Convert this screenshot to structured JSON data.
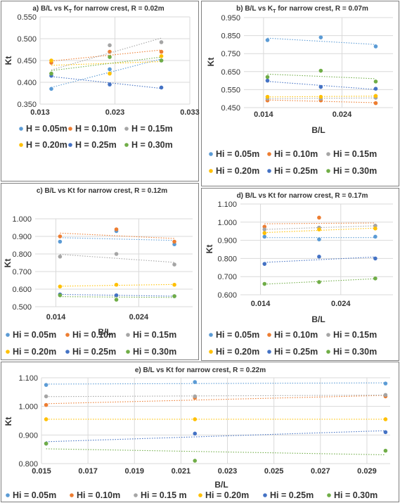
{
  "colors": {
    "s1": "#5b9bd5",
    "s2": "#ed7d31",
    "s3": "#a5a5a5",
    "s4": "#ffc000",
    "s5": "#4472c4",
    "s6": "#70ad47"
  },
  "chart_data": [
    {
      "type": "scatter",
      "title": "a) B/L vs K",
      "title_sub": "T",
      "title_rest": " for narrow crest, R = 0.02m",
      "xlabel": "",
      "ylabel": "Kt",
      "xlim": [
        0.013,
        0.033
      ],
      "ylim": [
        0.35,
        0.55
      ],
      "x_ticks": [
        "0.013",
        "0.023",
        "0.033"
      ],
      "y_ticks": [
        "0.350",
        "0.400",
        "0.450",
        "0.500",
        "0.550"
      ],
      "grid": true,
      "legend_position": "bottom",
      "series": [
        {
          "name": "H = 0.05m",
          "x": [
            0.0145,
            0.0223,
            0.0292
          ],
          "y": [
            0.385,
            0.43,
            0.45
          ]
        },
        {
          "name": "H = 0.10m",
          "x": [
            0.0145,
            0.0223,
            0.0292
          ],
          "y": [
            0.445,
            0.47,
            0.47
          ]
        },
        {
          "name": "H = 0.15m",
          "x": [
            0.0145,
            0.0223,
            0.0292
          ],
          "y": [
            0.42,
            0.485,
            0.492
          ]
        },
        {
          "name": "H = 0.20m",
          "x": [
            0.0145,
            0.0223,
            0.0292
          ],
          "y": [
            0.45,
            0.42,
            0.46
          ]
        },
        {
          "name": "H = 0.25m",
          "x": [
            0.0145,
            0.0223,
            0.0292
          ],
          "y": [
            0.415,
            0.395,
            0.388
          ]
        },
        {
          "name": "H = 0.30m",
          "x": [
            0.0145,
            0.0223,
            0.0292
          ],
          "y": [
            0.42,
            0.458,
            0.45
          ]
        }
      ]
    },
    {
      "type": "scatter",
      "title": "b) B/L vs K",
      "title_sub": "T",
      "title_rest": " for narrow crest, R = 0.07m",
      "xlabel": "B/L",
      "ylabel": "Kt",
      "xlim": [
        0.0115,
        0.0305
      ],
      "ylim": [
        0.45,
        0.95
      ],
      "x_ticks_at": [
        0.014,
        0.024
      ],
      "x_ticks": [
        "0.014",
        "0.024"
      ],
      "y_ticks": [
        "0.450",
        "0.550",
        "0.650",
        "0.750",
        "0.850",
        "0.950"
      ],
      "grid": true,
      "legend_position": "bottom",
      "series": [
        {
          "name": "Hi = 0.05m",
          "x": [
            0.0145,
            0.0213,
            0.0283
          ],
          "y": [
            0.825,
            0.84,
            0.79
          ]
        },
        {
          "name": "Hi = 0.10m",
          "x": [
            0.0145,
            0.0213,
            0.0283
          ],
          "y": [
            0.49,
            0.49,
            0.475
          ]
        },
        {
          "name": "Hi = 0.15m",
          "x": [
            0.0145,
            0.0213,
            0.0283
          ],
          "y": [
            0.5,
            0.5,
            0.505
          ]
        },
        {
          "name": "Hi = 0.20m",
          "x": [
            0.0145,
            0.0213,
            0.0283
          ],
          "y": [
            0.51,
            0.51,
            0.515
          ]
        },
        {
          "name": "Hi = 0.25m",
          "x": [
            0.0145,
            0.0213,
            0.0283
          ],
          "y": [
            0.6,
            0.565,
            0.555
          ]
        },
        {
          "name": "Hi = 0.30m",
          "x": [
            0.0145,
            0.0213,
            0.0283
          ],
          "y": [
            0.62,
            0.655,
            0.595
          ]
        }
      ]
    },
    {
      "type": "scatter",
      "title": "c) B/L vs Kt for narrow crest, R = 0.12m",
      "xlabel": "B/L",
      "ylabel": "Kt",
      "xlim": [
        0.0115,
        0.0305
      ],
      "ylim": [
        0.5,
        1.0
      ],
      "x_ticks_at": [
        0.014,
        0.024
      ],
      "x_ticks": [
        "0.014",
        "0.024"
      ],
      "y_ticks": [
        "0.500",
        "0.600",
        "0.700",
        "0.800",
        "0.900",
        "1.000"
      ],
      "grid": true,
      "legend_position": "bottom",
      "series": [
        {
          "name": "Hi = 0.05m",
          "x": [
            0.0145,
            0.0213,
            0.0283
          ],
          "y": [
            0.87,
            0.93,
            0.855
          ]
        },
        {
          "name": "Hi = 0.10m",
          "x": [
            0.0145,
            0.0213,
            0.0283
          ],
          "y": [
            0.9,
            0.94,
            0.87
          ]
        },
        {
          "name": "Hi = 0.15m",
          "x": [
            0.0145,
            0.0213,
            0.0283
          ],
          "y": [
            0.785,
            0.8,
            0.74
          ]
        },
        {
          "name": "Hi = 0.20m",
          "x": [
            0.0145,
            0.0213,
            0.0283
          ],
          "y": [
            0.615,
            0.625,
            0.625
          ]
        },
        {
          "name": "Hi = 0.25m",
          "x": [
            0.0145,
            0.0213,
            0.0283
          ],
          "y": [
            0.57,
            0.565,
            0.56
          ]
        },
        {
          "name": "Hi = 0.30m",
          "x": [
            0.0145,
            0.0213,
            0.0283
          ],
          "y": [
            0.565,
            0.54,
            0.56
          ]
        }
      ]
    },
    {
      "type": "scatter",
      "title": "d) B/L vs Kt for narrow crest, R = 0.17m",
      "xlabel": "B/L",
      "ylabel": "Kt",
      "xlim": [
        0.0115,
        0.0305
      ],
      "ylim": [
        0.6,
        1.1
      ],
      "x_ticks_at": [
        0.014,
        0.024
      ],
      "x_ticks": [
        "0.014",
        "0.024"
      ],
      "y_ticks": [
        "0.600",
        "0.700",
        "0.800",
        "0.900",
        "1.000",
        "1.100"
      ],
      "grid": true,
      "legend_position": "bottom",
      "series": [
        {
          "name": "Hi = 0.05m",
          "x": [
            0.0145,
            0.0213,
            0.0283
          ],
          "y": [
            0.92,
            0.905,
            0.92
          ]
        },
        {
          "name": "Hi = 0.10m",
          "x": [
            0.0145,
            0.0213,
            0.0283
          ],
          "y": [
            0.975,
            1.025,
            0.98
          ]
        },
        {
          "name": "Hi = 0.15m",
          "x": [
            0.0145,
            0.0213,
            0.0283
          ],
          "y": [
            0.96,
            0.97,
            0.98
          ]
        },
        {
          "name": "Hi = 0.20m",
          "x": [
            0.0145,
            0.0213,
            0.0283
          ],
          "y": [
            0.94,
            0.96,
            0.965
          ]
        },
        {
          "name": "Hi = 0.25m",
          "x": [
            0.0145,
            0.0213,
            0.0283
          ],
          "y": [
            0.77,
            0.81,
            0.8
          ]
        },
        {
          "name": "Hi = 0.30m",
          "x": [
            0.0145,
            0.0213,
            0.0283
          ],
          "y": [
            0.66,
            0.67,
            0.69
          ]
        }
      ]
    },
    {
      "type": "scatter",
      "title": "e) B/L vs Kt for narrow crest, R = 0.22m",
      "xlabel": "B/L",
      "ylabel": "Kt",
      "xlim": [
        0.015,
        0.03
      ],
      "ylim": [
        0.8,
        1.1
      ],
      "x_ticks": [
        "0.015",
        "0.017",
        "0.019",
        "0.021",
        "0.023",
        "0.025",
        "0.027",
        "0.029"
      ],
      "y_ticks": [
        "0.800",
        "0.900",
        "1.000",
        "1.100"
      ],
      "grid": true,
      "legend_position": "bottom",
      "series": [
        {
          "name": "Hi = 0.05m",
          "x": [
            0.0152,
            0.0216,
            0.0298
          ],
          "y": [
            1.075,
            1.085,
            1.08
          ]
        },
        {
          "name": "Hi = 0.10m",
          "x": [
            0.0152,
            0.0216,
            0.0298
          ],
          "y": [
            1.005,
            1.03,
            1.035
          ]
        },
        {
          "name": "Hi = 0.15 m",
          "x": [
            0.0152,
            0.0216,
            0.0298
          ],
          "y": [
            1.035,
            1.035,
            1.04
          ]
        },
        {
          "name": "Hi = 0.20m",
          "x": [
            0.0152,
            0.0216,
            0.0298
          ],
          "y": [
            0.955,
            0.955,
            0.955
          ]
        },
        {
          "name": "Hi = 0.25m",
          "x": [
            0.0152,
            0.0216,
            0.0298
          ],
          "y": [
            0.87,
            0.905,
            0.91
          ]
        },
        {
          "name": "Hi = 0.30m",
          "x": [
            0.0152,
            0.0216,
            0.0298
          ],
          "y": [
            0.87,
            0.81,
            0.845
          ]
        }
      ]
    }
  ]
}
